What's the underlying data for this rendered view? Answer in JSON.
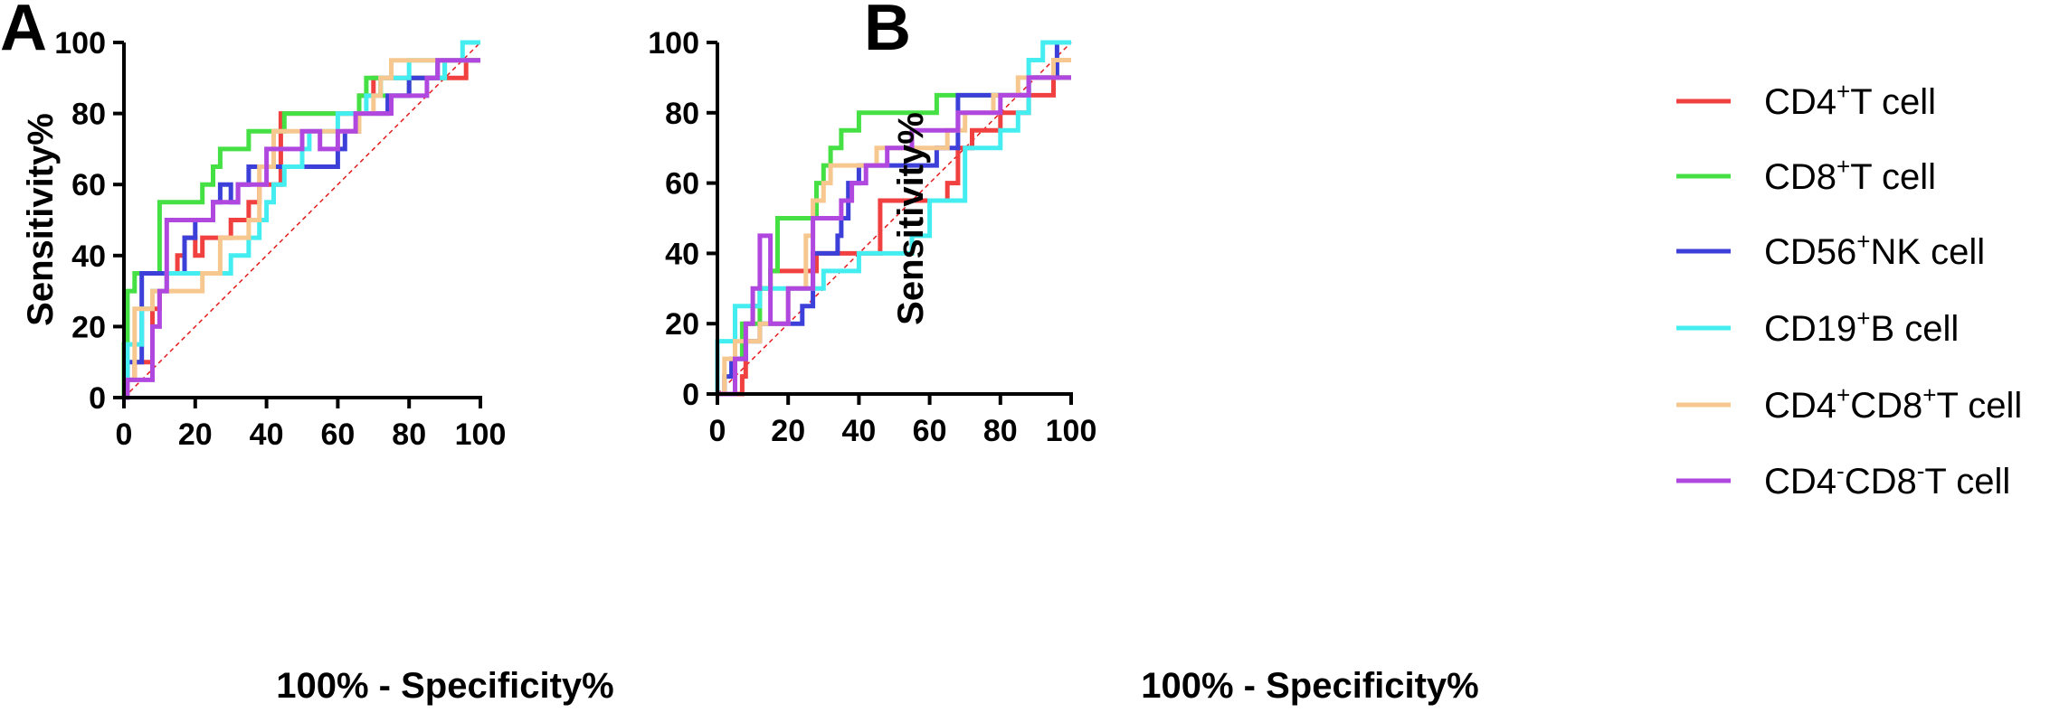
{
  "panel_labels": [
    "A",
    "B"
  ],
  "legend": [
    {
      "pre": "CD4",
      "sup1": "+",
      "mid": "T cell",
      "sup2": "",
      "post": "",
      "color": "#f04040"
    },
    {
      "pre": "CD8",
      "sup1": "+",
      "mid": "T cell",
      "sup2": "",
      "post": "",
      "color": "#44e044"
    },
    {
      "pre": "CD56",
      "sup1": "+",
      "mid": "NK cell",
      "sup2": "",
      "post": "",
      "color": "#3c40d8"
    },
    {
      "pre": "CD19",
      "sup1": "+",
      "mid": "B cell",
      "sup2": "",
      "post": "",
      "color": "#44eef0"
    },
    {
      "pre": "CD4",
      "sup1": "+",
      "mid": "CD8",
      "sup2": "+",
      "post": "T cell",
      "color": "#f6c890"
    },
    {
      "pre": "CD4",
      "sup1": "-",
      "mid": "CD8",
      "sup2": "-",
      "post": "T cell",
      "color": "#b048e0"
    }
  ],
  "chart_data": [
    {
      "type": "line",
      "panel": "A",
      "title": "",
      "xlabel": "100% - Specificity%",
      "ylabel": "Sensitivity%",
      "xlim": [
        0,
        100
      ],
      "ylim": [
        0,
        100
      ],
      "xticks": [
        0,
        20,
        40,
        60,
        80,
        100
      ],
      "yticks": [
        0,
        20,
        40,
        60,
        80,
        100
      ],
      "reference_line": [
        [
          0,
          0
        ],
        [
          100,
          100
        ]
      ],
      "series": [
        {
          "name": "CD4+T cell",
          "color": "#f04040",
          "x": [
            0,
            1,
            1,
            3,
            3,
            8,
            8,
            10,
            10,
            12,
            12,
            15,
            15,
            17,
            17,
            20,
            20,
            22,
            22,
            30,
            30,
            35,
            35,
            38,
            38,
            44,
            44,
            66,
            66,
            70,
            70,
            78,
            78,
            96,
            96,
            100
          ],
          "y": [
            0,
            0,
            5,
            5,
            10,
            10,
            25,
            25,
            30,
            30,
            35,
            35,
            40,
            40,
            45,
            45,
            40,
            40,
            45,
            45,
            50,
            50,
            55,
            55,
            60,
            60,
            80,
            80,
            85,
            85,
            90,
            90,
            90,
            90,
            95,
            95
          ]
        },
        {
          "name": "CD8+T cell",
          "color": "#44e044",
          "x": [
            0,
            0,
            1,
            1,
            3,
            3,
            10,
            10,
            22,
            22,
            25,
            25,
            27,
            27,
            35,
            35,
            45,
            45,
            66,
            66,
            68,
            68,
            72,
            72,
            80,
            80,
            90,
            90,
            100
          ],
          "y": [
            0,
            15,
            15,
            30,
            30,
            35,
            35,
            55,
            55,
            60,
            60,
            65,
            65,
            70,
            70,
            75,
            75,
            80,
            80,
            85,
            85,
            90,
            90,
            85,
            85,
            90,
            90,
            95,
            95
          ]
        },
        {
          "name": "CD56+NK cell",
          "color": "#3c40d8",
          "x": [
            0,
            1,
            1,
            5,
            5,
            17,
            17,
            20,
            20,
            25,
            25,
            27,
            27,
            30,
            30,
            32,
            32,
            35,
            35,
            60,
            60,
            62,
            62,
            66,
            66,
            74,
            74,
            80,
            80,
            88,
            88,
            96,
            96,
            100
          ],
          "y": [
            0,
            0,
            10,
            10,
            35,
            35,
            45,
            45,
            50,
            50,
            55,
            55,
            60,
            60,
            55,
            55,
            60,
            60,
            65,
            65,
            70,
            70,
            75,
            75,
            80,
            80,
            85,
            85,
            90,
            90,
            95,
            95,
            95,
            95
          ]
        },
        {
          "name": "CD19+B cell",
          "color": "#44eef0",
          "x": [
            0,
            1,
            1,
            5,
            5,
            8,
            8,
            12,
            12,
            30,
            30,
            35,
            35,
            38,
            38,
            40,
            40,
            42,
            42,
            45,
            45,
            50,
            50,
            52,
            52,
            60,
            60,
            68,
            68,
            72,
            72,
            80,
            80,
            88,
            88,
            90,
            90,
            95,
            95,
            100
          ],
          "y": [
            0,
            0,
            15,
            15,
            25,
            25,
            30,
            30,
            35,
            35,
            40,
            40,
            45,
            45,
            50,
            50,
            55,
            55,
            60,
            60,
            65,
            65,
            70,
            70,
            75,
            75,
            80,
            80,
            85,
            85,
            90,
            90,
            95,
            95,
            90,
            90,
            95,
            95,
            100,
            100
          ]
        },
        {
          "name": "CD4+CD8+T cell",
          "color": "#f6c890",
          "x": [
            0,
            1,
            1,
            3,
            3,
            8,
            8,
            10,
            10,
            22,
            22,
            27,
            27,
            35,
            35,
            38,
            38,
            42,
            42,
            45,
            45,
            66,
            66,
            70,
            70,
            72,
            72,
            75,
            75,
            85,
            85,
            100
          ],
          "y": [
            0,
            0,
            5,
            5,
            25,
            25,
            30,
            30,
            30,
            30,
            35,
            35,
            45,
            45,
            50,
            50,
            65,
            65,
            75,
            75,
            75,
            75,
            80,
            80,
            85,
            85,
            90,
            90,
            95,
            95,
            95,
            95
          ]
        },
        {
          "name": "CD4-CD8-T cell",
          "color": "#b048e0",
          "x": [
            0,
            1,
            1,
            8,
            8,
            10,
            10,
            12,
            12,
            25,
            25,
            32,
            32,
            40,
            40,
            50,
            50,
            55,
            55,
            60,
            60,
            65,
            65,
            75,
            75,
            85,
            85,
            88,
            88,
            100
          ],
          "y": [
            0,
            0,
            5,
            5,
            20,
            20,
            30,
            30,
            50,
            50,
            55,
            55,
            60,
            60,
            70,
            70,
            75,
            75,
            70,
            70,
            75,
            75,
            80,
            80,
            85,
            85,
            90,
            90,
            95,
            95
          ]
        }
      ]
    },
    {
      "type": "line",
      "panel": "B",
      "title": "",
      "xlabel": "100% - Specificity%",
      "ylabel": "Sensitivity%",
      "xlim": [
        0,
        100
      ],
      "ylim": [
        0,
        100
      ],
      "xticks": [
        0,
        20,
        40,
        60,
        80,
        100
      ],
      "yticks": [
        0,
        20,
        40,
        60,
        80,
        100
      ],
      "reference_line": [
        [
          0,
          0
        ],
        [
          100,
          100
        ]
      ],
      "series": [
        {
          "name": "CD4+T cell",
          "color": "#f04040",
          "x": [
            0,
            7,
            7,
            8,
            8,
            10,
            10,
            12,
            12,
            15,
            15,
            17,
            17,
            28,
            28,
            46,
            46,
            65,
            65,
            68,
            68,
            72,
            72,
            80,
            80,
            88,
            88,
            95,
            95,
            100
          ],
          "y": [
            0,
            0,
            5,
            5,
            20,
            20,
            25,
            25,
            30,
            30,
            35,
            35,
            35,
            35,
            40,
            40,
            55,
            55,
            60,
            60,
            70,
            70,
            75,
            75,
            80,
            80,
            85,
            85,
            90,
            90
          ]
        },
        {
          "name": "CD8+T cell",
          "color": "#44e044",
          "x": [
            0,
            5,
            5,
            7,
            7,
            12,
            12,
            15,
            15,
            17,
            17,
            20,
            20,
            22,
            22,
            28,
            28,
            30,
            30,
            32,
            32,
            35,
            35,
            38,
            38,
            40,
            40,
            42,
            42,
            62,
            62,
            70,
            70,
            88,
            88,
            100
          ],
          "y": [
            0,
            0,
            10,
            10,
            20,
            20,
            30,
            30,
            35,
            35,
            50,
            50,
            50,
            50,
            50,
            50,
            60,
            60,
            65,
            65,
            70,
            70,
            75,
            75,
            75,
            75,
            80,
            80,
            80,
            80,
            85,
            85,
            85,
            85,
            90,
            90
          ]
        },
        {
          "name": "CD56+NK cell",
          "color": "#3c40d8",
          "x": [
            0,
            2,
            2,
            4,
            4,
            8,
            8,
            12,
            12,
            17,
            17,
            20,
            20,
            24,
            24,
            27,
            27,
            30,
            30,
            34,
            34,
            35,
            35,
            37,
            37,
            40,
            40,
            45,
            45,
            62,
            62,
            68,
            68,
            88,
            88,
            96,
            96,
            100
          ],
          "y": [
            0,
            0,
            5,
            5,
            10,
            10,
            15,
            15,
            20,
            20,
            20,
            20,
            20,
            20,
            25,
            25,
            40,
            40,
            40,
            40,
            45,
            45,
            50,
            50,
            60,
            60,
            65,
            65,
            65,
            65,
            70,
            70,
            85,
            85,
            90,
            90,
            100,
            100
          ]
        },
        {
          "name": "CD19+B cell",
          "color": "#44eef0",
          "x": [
            0,
            0,
            5,
            5,
            12,
            12,
            22,
            22,
            30,
            30,
            40,
            40,
            48,
            48,
            55,
            55,
            60,
            60,
            70,
            70,
            80,
            80,
            85,
            85,
            88,
            88,
            92,
            92,
            100
          ],
          "y": [
            0,
            15,
            15,
            25,
            25,
            30,
            30,
            30,
            30,
            35,
            35,
            40,
            40,
            40,
            40,
            45,
            45,
            55,
            55,
            70,
            70,
            75,
            75,
            80,
            80,
            95,
            95,
            100,
            100
          ]
        },
        {
          "name": "CD4+CD8+T cell",
          "color": "#f6c890",
          "x": [
            0,
            2,
            2,
            5,
            5,
            12,
            12,
            20,
            20,
            25,
            25,
            27,
            27,
            30,
            30,
            32,
            32,
            38,
            38,
            45,
            45,
            65,
            65,
            70,
            70,
            78,
            78,
            85,
            85,
            95,
            95,
            100
          ],
          "y": [
            0,
            0,
            10,
            10,
            15,
            15,
            20,
            20,
            30,
            30,
            45,
            45,
            55,
            55,
            60,
            60,
            65,
            65,
            65,
            65,
            70,
            70,
            75,
            75,
            80,
            80,
            85,
            85,
            90,
            90,
            95,
            95
          ]
        },
        {
          "name": "CD4-CD8-T cell",
          "color": "#b048e0",
          "x": [
            0,
            5,
            5,
            8,
            8,
            10,
            10,
            12,
            12,
            15,
            15,
            20,
            20,
            27,
            27,
            35,
            35,
            38,
            38,
            42,
            42,
            48,
            48,
            55,
            55,
            62,
            62,
            68,
            68,
            80,
            80,
            88,
            88,
            100
          ],
          "y": [
            0,
            0,
            10,
            10,
            20,
            20,
            30,
            30,
            45,
            45,
            20,
            20,
            30,
            30,
            50,
            50,
            55,
            55,
            60,
            60,
            65,
            65,
            70,
            70,
            75,
            75,
            75,
            75,
            80,
            80,
            85,
            85,
            90,
            90
          ]
        }
      ]
    }
  ]
}
